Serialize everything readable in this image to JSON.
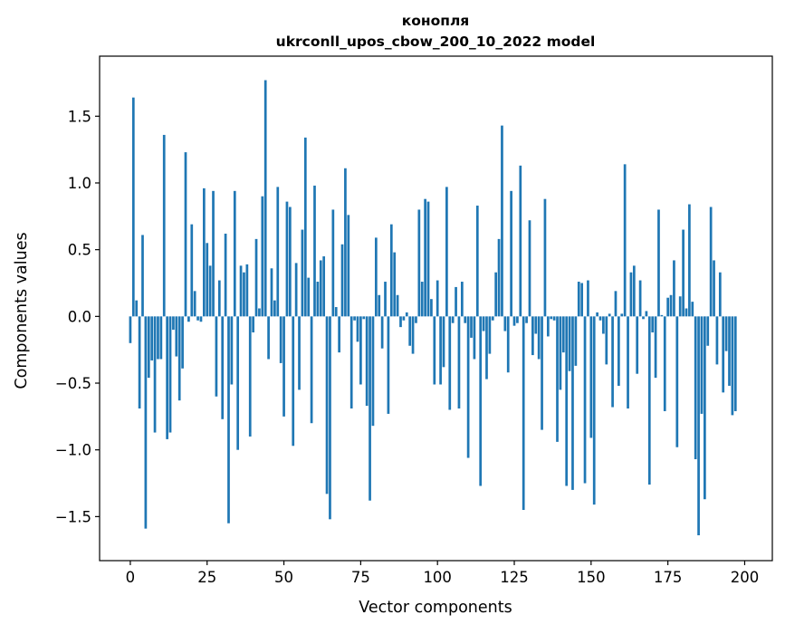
{
  "chart_data": {
    "type": "bar",
    "title": "конопля",
    "subtitle": "ukrconll_upos_cbow_200_10_2022 model",
    "xlabel": "Vector components",
    "ylabel": "Components values",
    "xlim": [
      -10,
      209
    ],
    "ylim": [
      -1.83,
      1.95
    ],
    "xticks": [
      0,
      25,
      50,
      75,
      100,
      125,
      150,
      175,
      200
    ],
    "yticks": [
      -1.5,
      -1.0,
      -0.5,
      0.0,
      0.5,
      1.0,
      1.5
    ],
    "ytick_labels": [
      "−1.5",
      "−1.0",
      "−0.5",
      "0.0",
      "0.5",
      "1.0",
      "1.5"
    ],
    "grid": false,
    "bar_color": "#1f77b4",
    "values": [
      -0.2,
      1.64,
      0.12,
      -0.69,
      0.61,
      -1.59,
      -0.46,
      -0.33,
      -0.87,
      -0.32,
      -0.32,
      1.36,
      -0.92,
      -0.87,
      -0.1,
      -0.3,
      -0.63,
      -0.39,
      1.23,
      -0.04,
      0.69,
      0.19,
      -0.03,
      -0.04,
      0.96,
      0.55,
      0.38,
      0.94,
      -0.6,
      0.27,
      -0.77,
      0.62,
      -1.55,
      -0.51,
      0.94,
      -1.0,
      0.38,
      0.33,
      0.39,
      -0.9,
      -0.12,
      0.58,
      0.06,
      0.9,
      1.77,
      -0.32,
      0.36,
      0.12,
      0.97,
      -0.35,
      -0.75,
      0.86,
      0.82,
      -0.97,
      0.4,
      -0.55,
      0.65,
      1.34,
      0.29,
      -0.8,
      0.98,
      0.26,
      0.42,
      0.45,
      -1.33,
      -1.52,
      0.8,
      0.07,
      -0.27,
      0.54,
      1.11,
      0.76,
      -0.69,
      -0.03,
      -0.19,
      -0.51,
      -0.02,
      -0.67,
      -1.38,
      -0.82,
      0.59,
      0.16,
      -0.24,
      0.26,
      -0.73,
      0.69,
      0.48,
      0.16,
      -0.08,
      -0.03,
      0.03,
      -0.22,
      -0.28,
      -0.05,
      0.8,
      0.26,
      0.88,
      0.86,
      0.13,
      -0.51,
      0.27,
      -0.51,
      -0.38,
      0.97,
      -0.7,
      -0.05,
      0.22,
      -0.69,
      0.26,
      -0.05,
      -1.06,
      -0.16,
      -0.32,
      0.83,
      -1.27,
      -0.11,
      -0.47,
      -0.28,
      -0.03,
      0.33,
      0.58,
      1.43,
      -0.11,
      -0.42,
      0.94,
      -0.07,
      -0.05,
      1.13,
      -1.45,
      -0.05,
      0.72,
      -0.29,
      -0.13,
      -0.32,
      -0.85,
      0.88,
      -0.15,
      -0.02,
      -0.03,
      -0.94,
      -0.55,
      -0.27,
      -1.27,
      -0.41,
      -1.3,
      -0.37,
      0.26,
      0.25,
      -1.25,
      0.27,
      -0.91,
      -1.41,
      0.03,
      -0.03,
      -0.13,
      -0.36,
      0.02,
      -0.68,
      0.19,
      -0.52,
      0.02,
      1.14,
      -0.69,
      0.33,
      0.38,
      -0.43,
      0.27,
      -0.02,
      0.04,
      -1.26,
      -0.12,
      -0.46,
      0.8,
      0.01,
      -0.71,
      0.14,
      0.16,
      0.42,
      -0.98,
      0.15,
      0.65,
      0.06,
      0.84,
      0.11,
      -1.07,
      -1.64,
      -0.73,
      -1.37,
      -0.22,
      0.82,
      0.42,
      -0.36,
      0.33,
      -0.57,
      -0.26,
      -0.52,
      -0.74,
      -0.71
    ]
  }
}
